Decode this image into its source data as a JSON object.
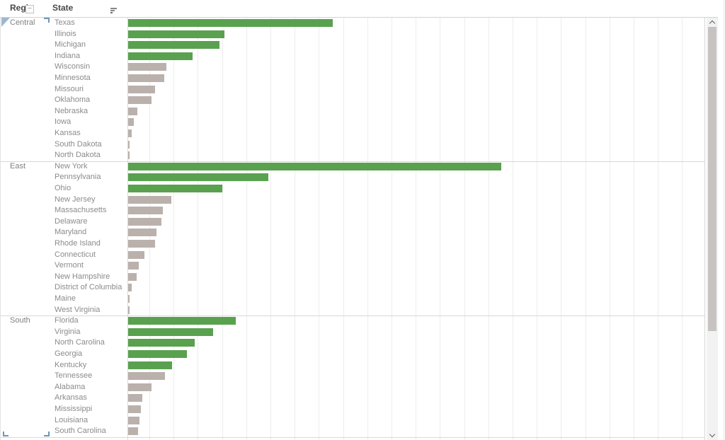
{
  "header": {
    "region_label": "Regi",
    "collapse_glyph": "−",
    "state_label": "State"
  },
  "colors": {
    "highlight_bar": "#59A14F",
    "default_bar": "#BAB1AC",
    "gridline": "#EDEDED",
    "separator": "#D8D8D8",
    "label_text": "#8B8B8B",
    "header_text": "#484848",
    "selection_blue": "#6E96B8"
  },
  "chart_data": {
    "type": "bar",
    "orientation": "horizontal",
    "title": "",
    "xlabel": "",
    "ylabel": "",
    "row_fields": [
      "Region",
      "State"
    ],
    "legend": "none",
    "grid": "on",
    "value_axis": {
      "tick_labels_visible": false,
      "estimated_gridline_step": 20000,
      "estimated_range": [
        0,
        470000
      ]
    },
    "sort": "descending within region",
    "regions": [
      {
        "name": "Central",
        "states": [
          {
            "state": "Texas",
            "value": 170188,
            "highlighted": true
          },
          {
            "state": "Illinois",
            "value": 80166,
            "highlighted": true
          },
          {
            "state": "Michigan",
            "value": 76270,
            "highlighted": true
          },
          {
            "state": "Indiana",
            "value": 53555,
            "highlighted": true
          },
          {
            "state": "Wisconsin",
            "value": 32115,
            "highlighted": false
          },
          {
            "state": "Minnesota",
            "value": 29863,
            "highlighted": false
          },
          {
            "state": "Missouri",
            "value": 22205,
            "highlighted": false
          },
          {
            "state": "Oklahoma",
            "value": 19683,
            "highlighted": false
          },
          {
            "state": "Nebraska",
            "value": 7465,
            "highlighted": false
          },
          {
            "state": "Iowa",
            "value": 4580,
            "highlighted": false
          },
          {
            "state": "Kansas",
            "value": 2914,
            "highlighted": false
          },
          {
            "state": "South Dakota",
            "value": 1316,
            "highlighted": false
          },
          {
            "state": "North Dakota",
            "value": 920,
            "highlighted": false
          }
        ]
      },
      {
        "name": "East",
        "states": [
          {
            "state": "New York",
            "value": 310876,
            "highlighted": true
          },
          {
            "state": "Pennsylvania",
            "value": 116512,
            "highlighted": true
          },
          {
            "state": "Ohio",
            "value": 78258,
            "highlighted": true
          },
          {
            "state": "New Jersey",
            "value": 35764,
            "highlighted": false
          },
          {
            "state": "Massachusetts",
            "value": 28634,
            "highlighted": false
          },
          {
            "state": "Delaware",
            "value": 27451,
            "highlighted": false
          },
          {
            "state": "Maryland",
            "value": 23706,
            "highlighted": false
          },
          {
            "state": "Rhode Island",
            "value": 22628,
            "highlighted": false
          },
          {
            "state": "Connecticut",
            "value": 13384,
            "highlighted": false
          },
          {
            "state": "Vermont",
            "value": 8929,
            "highlighted": false
          },
          {
            "state": "New Hampshire",
            "value": 7293,
            "highlighted": false
          },
          {
            "state": "District of Columbia",
            "value": 2865,
            "highlighted": false
          },
          {
            "state": "Maine",
            "value": 1271,
            "highlighted": false
          },
          {
            "state": "West Virginia",
            "value": 1210,
            "highlighted": false
          }
        ]
      },
      {
        "name": "South",
        "states": [
          {
            "state": "Florida",
            "value": 89474,
            "highlighted": true
          },
          {
            "state": "Virginia",
            "value": 70637,
            "highlighted": true
          },
          {
            "state": "North Carolina",
            "value": 55603,
            "highlighted": true
          },
          {
            "state": "Georgia",
            "value": 49096,
            "highlighted": true
          },
          {
            "state": "Kentucky",
            "value": 36592,
            "highlighted": true
          },
          {
            "state": "Tennessee",
            "value": 30662,
            "highlighted": false
          },
          {
            "state": "Alabama",
            "value": 19511,
            "highlighted": false
          },
          {
            "state": "Arkansas",
            "value": 11678,
            "highlighted": false
          },
          {
            "state": "Mississippi",
            "value": 10771,
            "highlighted": false
          },
          {
            "state": "Louisiana",
            "value": 9217,
            "highlighted": false
          },
          {
            "state": "South Carolina",
            "value": 8482,
            "highlighted": false
          }
        ]
      }
    ]
  }
}
